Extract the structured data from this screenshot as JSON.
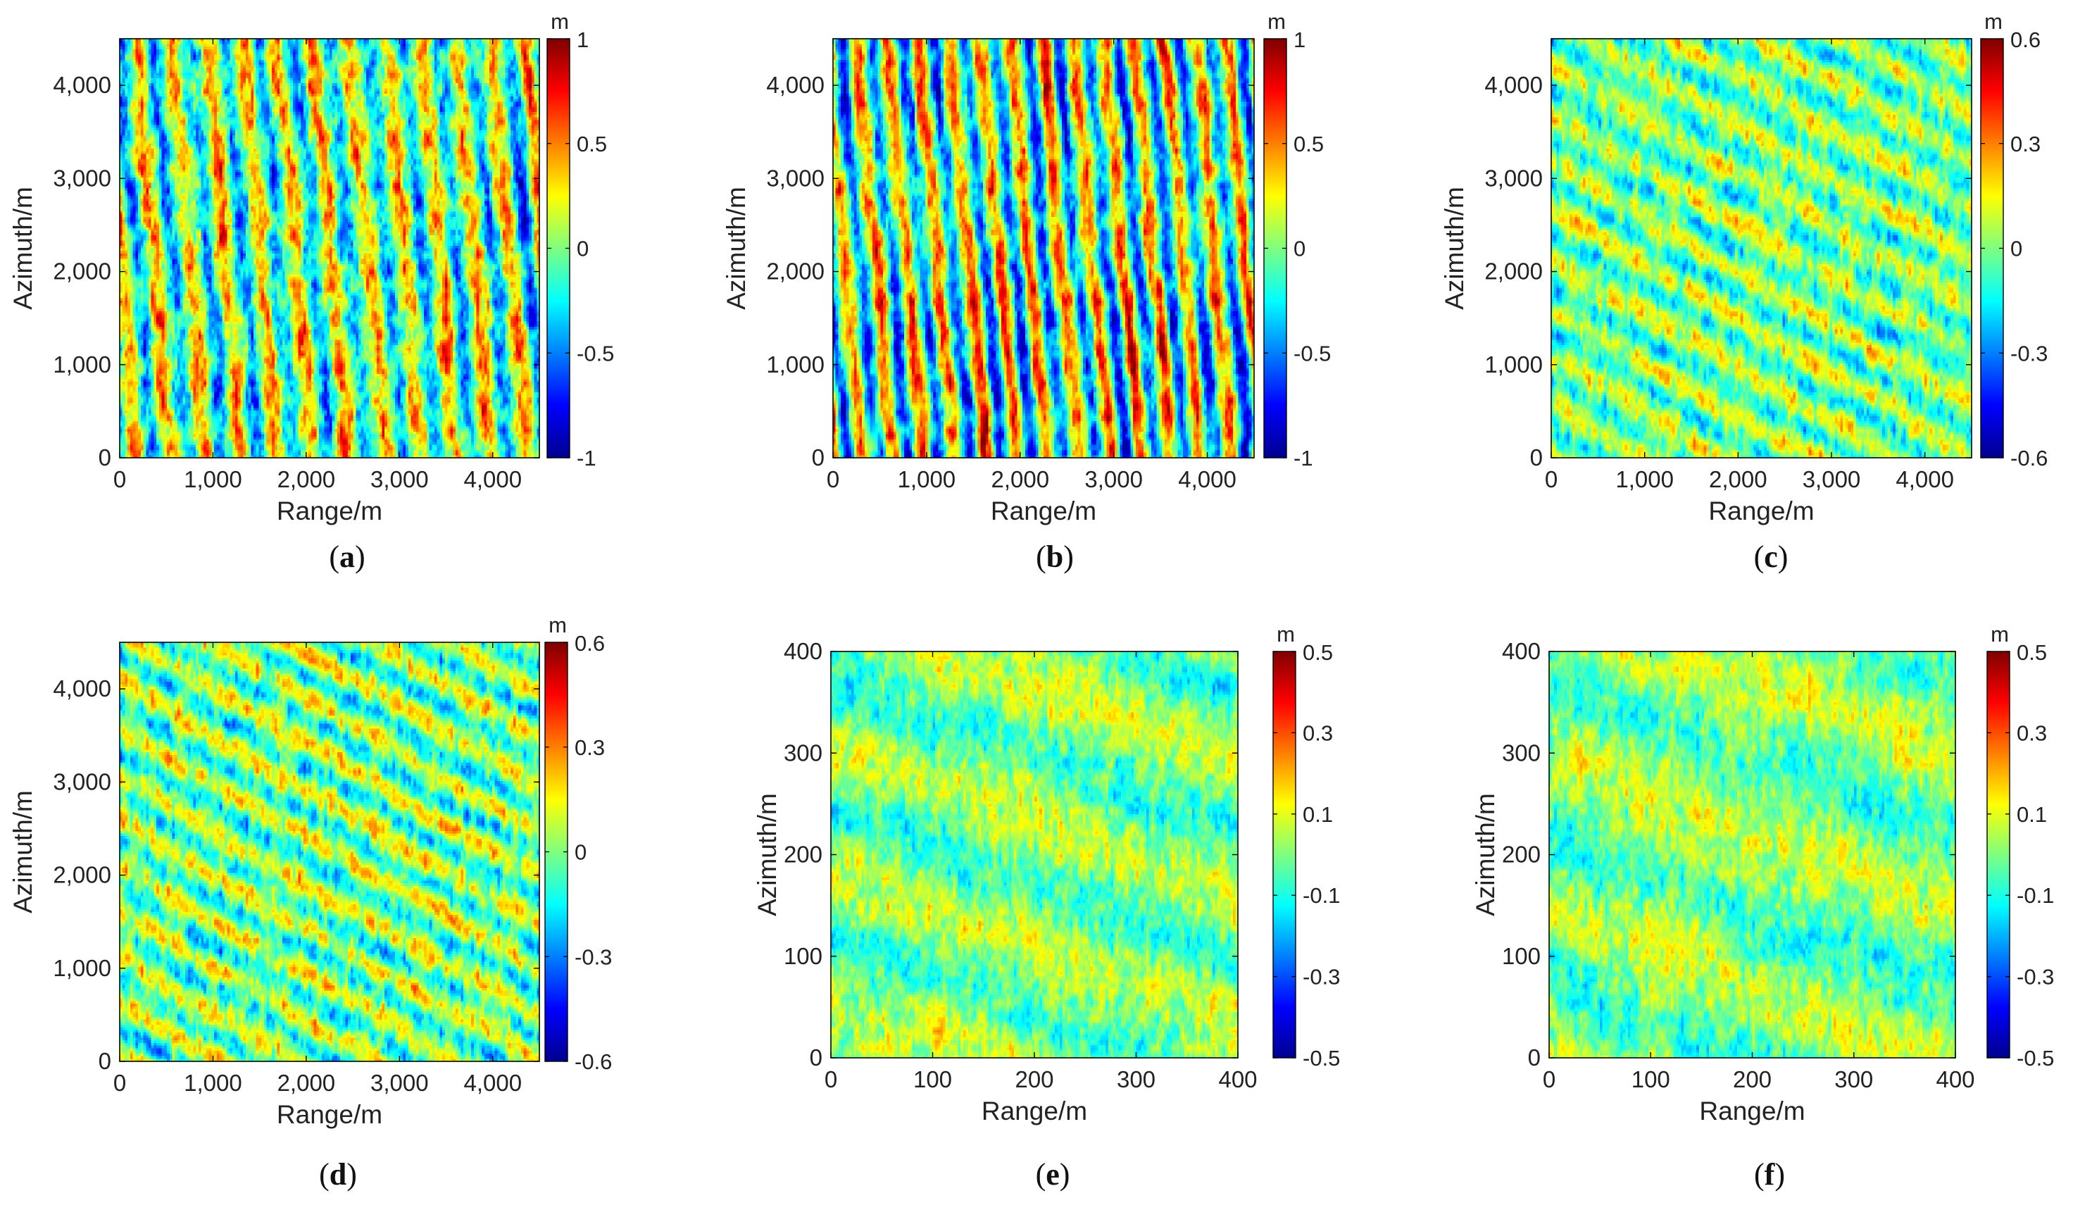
{
  "figure": {
    "description_free": true
  },
  "colors": {
    "jet": [
      "#00008f",
      "#0000ff",
      "#007fff",
      "#00ffff",
      "#7fff7f",
      "#ffff00",
      "#ff7f00",
      "#ff0000",
      "#7f0000"
    ],
    "axis": "#000000",
    "text": "#222222"
  },
  "chart_data": [
    {
      "id": "a",
      "type": "heatmap",
      "caption_label": "a",
      "title": "",
      "xlabel": "Range/m",
      "ylabel": "Azimuth/m",
      "xlim": [
        0,
        4500
      ],
      "ylim": [
        0,
        4500
      ],
      "xticks": [
        0,
        1000,
        2000,
        3000,
        4000
      ],
      "xtick_labels": [
        "0",
        "1,000",
        "2,000",
        "3,000",
        "4,000"
      ],
      "yticks": [
        0,
        1000,
        2000,
        3000,
        4000
      ],
      "ytick_labels": [
        "0",
        "1,000",
        "2,000",
        "3,000",
        "4,000"
      ],
      "colorbar": {
        "unit": "m",
        "range": [
          -1,
          1
        ],
        "ticks": [
          -1,
          -0.5,
          0,
          0.5,
          1
        ],
        "tick_labels": [
          "-1",
          "-0.5",
          "0",
          "0.5",
          "1"
        ]
      },
      "pattern": {
        "wave_dir_deg": 5,
        "wavelength_m": 380,
        "amp": 0.35,
        "noise": 0.32,
        "seed": 11,
        "gamma": 1.6
      }
    },
    {
      "id": "b",
      "type": "heatmap",
      "caption_label": "b",
      "title": "",
      "xlabel": "Range/m",
      "ylabel": "Azimuth/m",
      "xlim": [
        0,
        4500
      ],
      "ylim": [
        0,
        4500
      ],
      "xticks": [
        0,
        1000,
        2000,
        3000,
        4000
      ],
      "xtick_labels": [
        "0",
        "1,000",
        "2,000",
        "3,000",
        "4,000"
      ],
      "yticks": [
        0,
        1000,
        2000,
        3000,
        4000
      ],
      "ytick_labels": [
        "0",
        "1,000",
        "2,000",
        "3,000",
        "4,000"
      ],
      "colorbar": {
        "unit": "m",
        "range": [
          -1,
          1
        ],
        "ticks": [
          -1,
          -0.5,
          0,
          0.5,
          1
        ],
        "tick_labels": [
          "-1",
          "-0.5",
          "0",
          "0.5",
          "1"
        ]
      },
      "pattern": {
        "wave_dir_deg": 5,
        "wavelength_m": 330,
        "amp": 0.55,
        "noise": 0.35,
        "seed": 23,
        "gamma": 1.3
      }
    },
    {
      "id": "c",
      "type": "heatmap",
      "caption_label": "c",
      "title": "",
      "xlabel": "Range/m",
      "ylabel": "Azimuth/m",
      "xlim": [
        0,
        4500
      ],
      "ylim": [
        0,
        4500
      ],
      "xticks": [
        0,
        1000,
        2000,
        3000,
        4000
      ],
      "xtick_labels": [
        "0",
        "1,000",
        "2,000",
        "3,000",
        "4,000"
      ],
      "yticks": [
        0,
        1000,
        2000,
        3000,
        4000
      ],
      "ytick_labels": [
        "0",
        "1,000",
        "2,000",
        "3,000",
        "4,000"
      ],
      "colorbar": {
        "unit": "m",
        "range": [
          -0.6,
          0.6
        ],
        "ticks": [
          -0.6,
          -0.3,
          0,
          0.3,
          0.6
        ],
        "tick_labels": [
          "-0.6",
          "-0.3",
          "0",
          "0.3",
          "0.6"
        ]
      },
      "pattern": {
        "wave_dir_deg": 60,
        "wavelength_m": 450,
        "amp": 0.16,
        "noise": 0.24,
        "seed": 37,
        "gamma": 1.0
      }
    },
    {
      "id": "d",
      "type": "heatmap",
      "caption_label": "d",
      "title": "",
      "xlabel": "Range/m",
      "ylabel": "Azimuth/m",
      "xlim": [
        0,
        4500
      ],
      "ylim": [
        0,
        4500
      ],
      "xticks": [
        0,
        1000,
        2000,
        3000,
        4000
      ],
      "xtick_labels": [
        "0",
        "1,000",
        "2,000",
        "3,000",
        "4,000"
      ],
      "yticks": [
        0,
        1000,
        2000,
        3000,
        4000
      ],
      "ytick_labels": [
        "0",
        "1,000",
        "2,000",
        "3,000",
        "4,000"
      ],
      "colorbar": {
        "unit": "m",
        "range": [
          -0.6,
          0.6
        ],
        "ticks": [
          -0.6,
          -0.3,
          0,
          0.3,
          0.6
        ],
        "tick_labels": [
          "-0.6",
          "-0.3",
          "0",
          "0.3",
          "0.6"
        ]
      },
      "pattern": {
        "wave_dir_deg": 60,
        "wavelength_m": 430,
        "amp": 0.19,
        "noise": 0.26,
        "seed": 53,
        "gamma": 1.0
      }
    },
    {
      "id": "e",
      "type": "heatmap",
      "caption_label": "e",
      "title": "",
      "xlabel": "Range/m",
      "ylabel": "Azimuth/m",
      "xlim": [
        0,
        400
      ],
      "ylim": [
        0,
        400
      ],
      "xticks": [
        0,
        100,
        200,
        300,
        400
      ],
      "xtick_labels": [
        "0",
        "100",
        "200",
        "300",
        "400"
      ],
      "yticks": [
        0,
        100,
        200,
        300,
        400
      ],
      "ytick_labels": [
        "0",
        "100",
        "200",
        "300",
        "400"
      ],
      "colorbar": {
        "unit": "m",
        "range": [
          -0.5,
          0.5
        ],
        "ticks": [
          -0.5,
          -0.3,
          -0.1,
          0.1,
          0.3,
          0.5
        ],
        "tick_labels": [
          "-0.5",
          "-0.3",
          "-0.1",
          "0.1",
          "0.3",
          "0.5"
        ]
      },
      "pattern": {
        "wave_dir_deg": 70,
        "wavelength_m": 120,
        "amp": 0.1,
        "noise": 0.16,
        "seed": 71,
        "gamma": 1.0
      }
    },
    {
      "id": "f",
      "type": "heatmap",
      "caption_label": "f",
      "title": "",
      "xlabel": "Range/m",
      "ylabel": "Azimuth/m",
      "xlim": [
        0,
        400
      ],
      "ylim": [
        0,
        400
      ],
      "xticks": [
        0,
        100,
        200,
        300,
        400
      ],
      "xtick_labels": [
        "0",
        "100",
        "200",
        "300",
        "400"
      ],
      "yticks": [
        0,
        100,
        200,
        300,
        400
      ],
      "ytick_labels": [
        "0",
        "100",
        "200",
        "300",
        "400"
      ],
      "colorbar": {
        "unit": "m",
        "range": [
          -0.5,
          0.5
        ],
        "ticks": [
          -0.5,
          -0.3,
          -0.1,
          0.1,
          0.3,
          0.5
        ],
        "tick_labels": [
          "-0.5",
          "-0.3",
          "-0.1",
          "0.1",
          "0.3",
          "0.5"
        ]
      },
      "pattern": {
        "wave_dir_deg": 70,
        "wavelength_m": 140,
        "amp": 0.1,
        "noise": 0.16,
        "seed": 89,
        "gamma": 1.0
      }
    }
  ]
}
